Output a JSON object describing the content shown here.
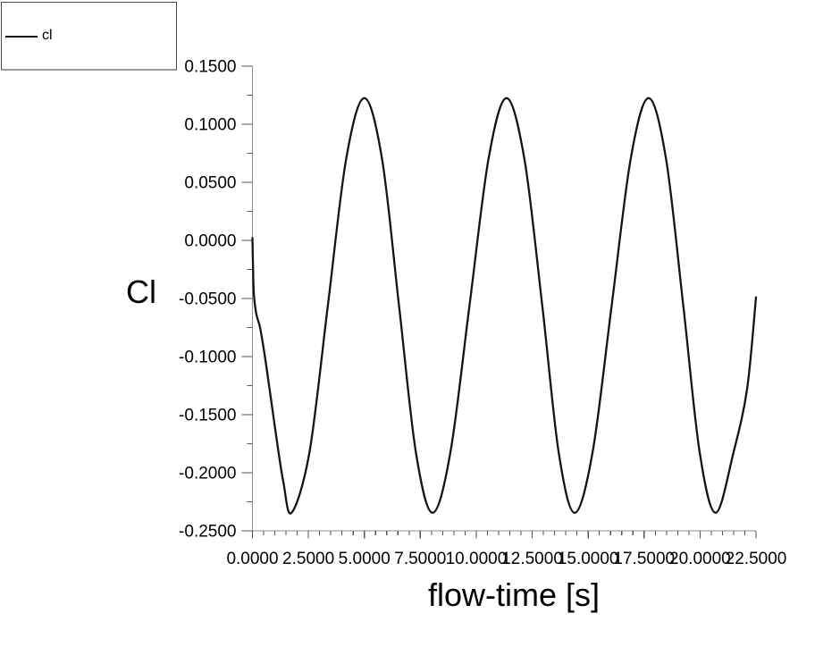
{
  "window": {
    "background": "#ffffff"
  },
  "chart_data": {
    "type": "line",
    "title": "",
    "xlabel": "flow-time [s]",
    "ylabel": "Cl",
    "xlim": [
      0,
      22.5
    ],
    "ylim": [
      -0.25,
      0.15
    ],
    "grid": false,
    "legend_position": "top-left",
    "x_tick_labels": [
      "0.0000",
      "2.5000",
      "5.0000",
      "7.5000",
      "10.0000",
      "12.5000",
      "15.0000",
      "17.5000",
      "20.0000",
      "22.5000"
    ],
    "y_tick_labels": [
      "0.1500",
      "0.1000",
      "0.0500",
      "0.0000",
      "-0.0500",
      "-0.1000",
      "-0.1500",
      "-0.2000",
      "-0.2500"
    ],
    "x_minor_divisions": 5,
    "y_minor_divisions": 2,
    "observed": {
      "peak_value": 0.1225,
      "trough_value": -0.2345,
      "mean_value": -0.056,
      "period_s": 6.3,
      "peak_times_s": [
        5.0,
        11.35,
        17.7
      ],
      "trough_times_s": [
        1.75,
        8.05,
        14.4,
        20.7
      ],
      "start_value": 0.0,
      "end_value": -0.049
    },
    "series": [
      {
        "name": "cl",
        "color": "#141414",
        "points": [
          [
            0.0,
            0.002
          ],
          [
            0.03,
            -0.028
          ],
          [
            0.07,
            -0.048
          ],
          [
            0.18,
            -0.064
          ],
          [
            0.35,
            -0.076
          ],
          [
            0.62,
            -0.108
          ],
          [
            1.0,
            -0.16
          ],
          [
            1.38,
            -0.208
          ],
          [
            1.75,
            -0.2345
          ],
          [
            2.55,
            -0.182
          ],
          [
            3.37,
            -0.056
          ],
          [
            4.19,
            0.0702
          ],
          [
            5.0,
            0.1225
          ],
          [
            5.79,
            0.0702
          ],
          [
            6.55,
            -0.056
          ],
          [
            7.3,
            -0.182
          ],
          [
            8.05,
            -0.2345
          ],
          [
            8.85,
            -0.182
          ],
          [
            9.7,
            -0.056
          ],
          [
            10.55,
            0.0702
          ],
          [
            11.35,
            0.1225
          ],
          [
            12.15,
            0.0702
          ],
          [
            12.95,
            -0.056
          ],
          [
            13.68,
            -0.182
          ],
          [
            14.4,
            -0.2345
          ],
          [
            15.2,
            -0.182
          ],
          [
            16.05,
            -0.056
          ],
          [
            16.9,
            0.0702
          ],
          [
            17.7,
            0.1225
          ],
          [
            18.48,
            0.0702
          ],
          [
            19.25,
            -0.056
          ],
          [
            19.98,
            -0.182
          ],
          [
            20.7,
            -0.2345
          ],
          [
            21.5,
            -0.182
          ],
          [
            22.1,
            -0.128
          ],
          [
            22.5,
            -0.049
          ]
        ]
      }
    ]
  },
  "colors": {
    "background": "#ffffff",
    "axis": "#8e8e8e",
    "ticks": "#555555",
    "curve": "#141414",
    "text": "#000000",
    "legend_border": "#4a4a4a"
  }
}
